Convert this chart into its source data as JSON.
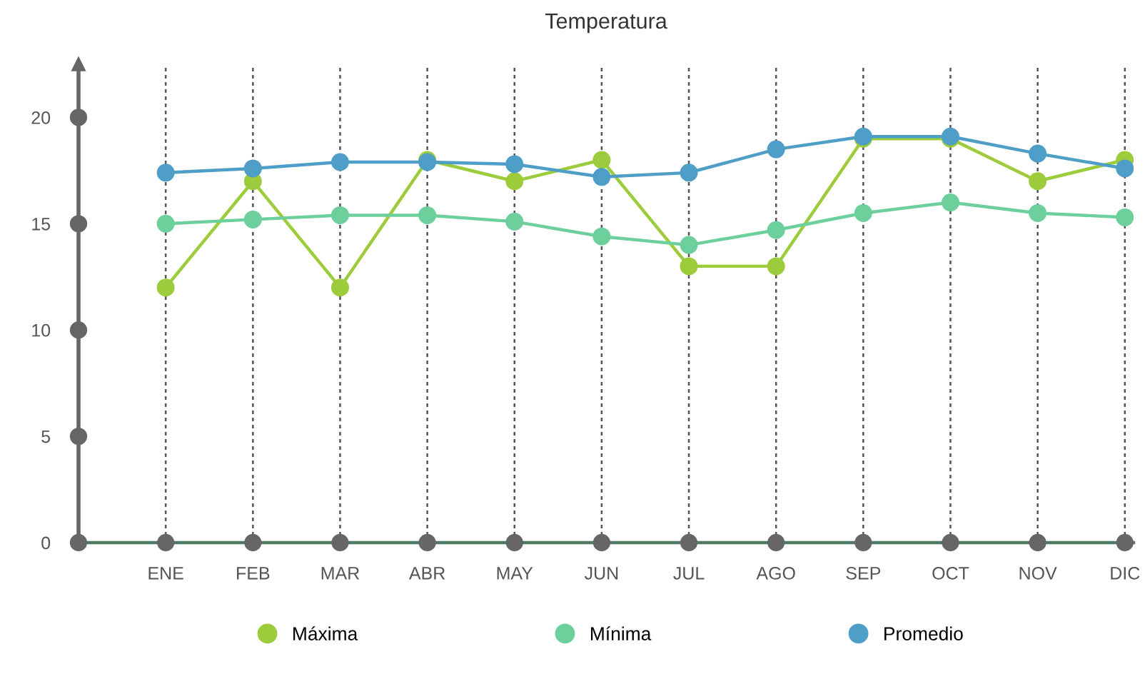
{
  "chart_data": {
    "type": "line",
    "title": "Temperatura",
    "categories": [
      "ENE",
      "FEB",
      "MAR",
      "ABR",
      "MAY",
      "JUN",
      "JUL",
      "AGO",
      "SEP",
      "OCT",
      "NOV",
      "DIC"
    ],
    "series": [
      {
        "name": "Máxima",
        "color": "#9ccc3c",
        "values": [
          12,
          17,
          12,
          18,
          17,
          18,
          13,
          13,
          19,
          19,
          17,
          18
        ]
      },
      {
        "name": "Mínima",
        "color": "#6dcf9c",
        "values": [
          15.0,
          15.2,
          15.4,
          15.4,
          15.1,
          14.4,
          14.0,
          14.7,
          15.5,
          16.0,
          15.5,
          15.3
        ]
      },
      {
        "name": "Promedio",
        "color": "#4e9ec8",
        "values": [
          17.4,
          17.6,
          17.9,
          17.9,
          17.8,
          17.2,
          17.4,
          18.5,
          19.1,
          19.1,
          18.3,
          17.6
        ]
      }
    ],
    "ylim": [
      0,
      22.5
    ],
    "yticks": [
      0,
      5,
      10,
      15,
      20
    ],
    "grid": "x",
    "legend": "bottom",
    "marker": "circle",
    "line_style": "solid"
  }
}
